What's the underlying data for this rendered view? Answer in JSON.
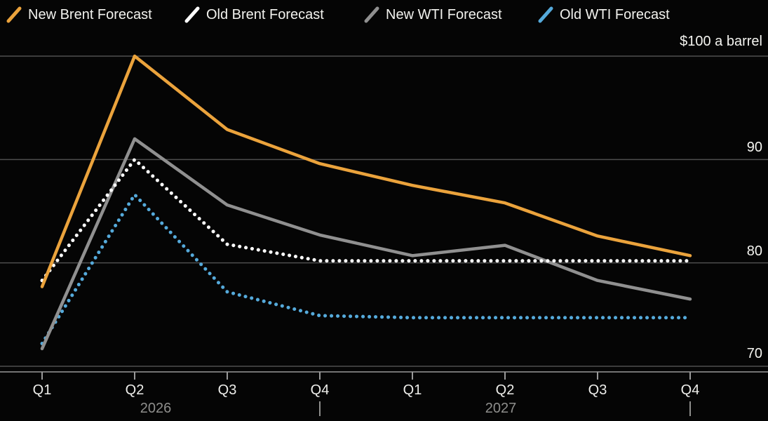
{
  "legend": {
    "items": [
      {
        "label": "New Brent Forecast",
        "color": "#EBA33C",
        "style": "solid"
      },
      {
        "label": "Old Brent Forecast",
        "color": "#FFFFFF",
        "style": "dotted"
      },
      {
        "label": "New WTI Forecast",
        "color": "#909090",
        "style": "solid"
      },
      {
        "label": "Old WTI Forecast",
        "color": "#55AADB",
        "style": "dotted"
      }
    ]
  },
  "chart_data": {
    "type": "line",
    "title": "",
    "categories": [
      "Q1",
      "Q2",
      "Q3",
      "Q4",
      "Q1",
      "Q2",
      "Q3",
      "Q4"
    ],
    "years": [
      "2026",
      "2027"
    ],
    "year_boundaries_after_index": [
      3,
      7
    ],
    "series": [
      {
        "name": "New Brent Forecast",
        "color": "#EBA33C",
        "dash": "solid",
        "values": [
          77.7,
          100.0,
          92.9,
          89.6,
          87.5,
          85.8,
          82.6,
          80.7
        ]
      },
      {
        "name": "Old Brent Forecast",
        "color": "#FFFFFF",
        "dash": "dotted",
        "values": [
          78.3,
          90.0,
          81.8,
          80.2,
          80.2,
          80.2,
          80.2,
          80.2
        ]
      },
      {
        "name": "New WTI Forecast",
        "color": "#909090",
        "dash": "solid",
        "values": [
          71.7,
          92.0,
          85.6,
          82.7,
          80.7,
          81.7,
          78.3,
          76.5
        ]
      },
      {
        "name": "Old WTI Forecast",
        "color": "#55AADB",
        "dash": "dotted",
        "values": [
          72.2,
          86.6,
          77.2,
          74.9,
          74.7,
          74.7,
          74.7,
          74.7
        ]
      }
    ],
    "yticks": [
      100,
      90,
      80,
      70
    ],
    "ytick_labels": [
      "$100 a barrel",
      "90",
      "80",
      "70"
    ],
    "ylim": [
      68,
      102
    ],
    "xlabel": "",
    "ylabel": "",
    "grid": "horizontal",
    "legend_position": "top",
    "colors": {
      "background": "#050505",
      "gridline": "#4E4E4E",
      "axis": "#9A9A9A",
      "tick_label": "#EDEDEA",
      "year_label": "#8E8E8C"
    }
  }
}
